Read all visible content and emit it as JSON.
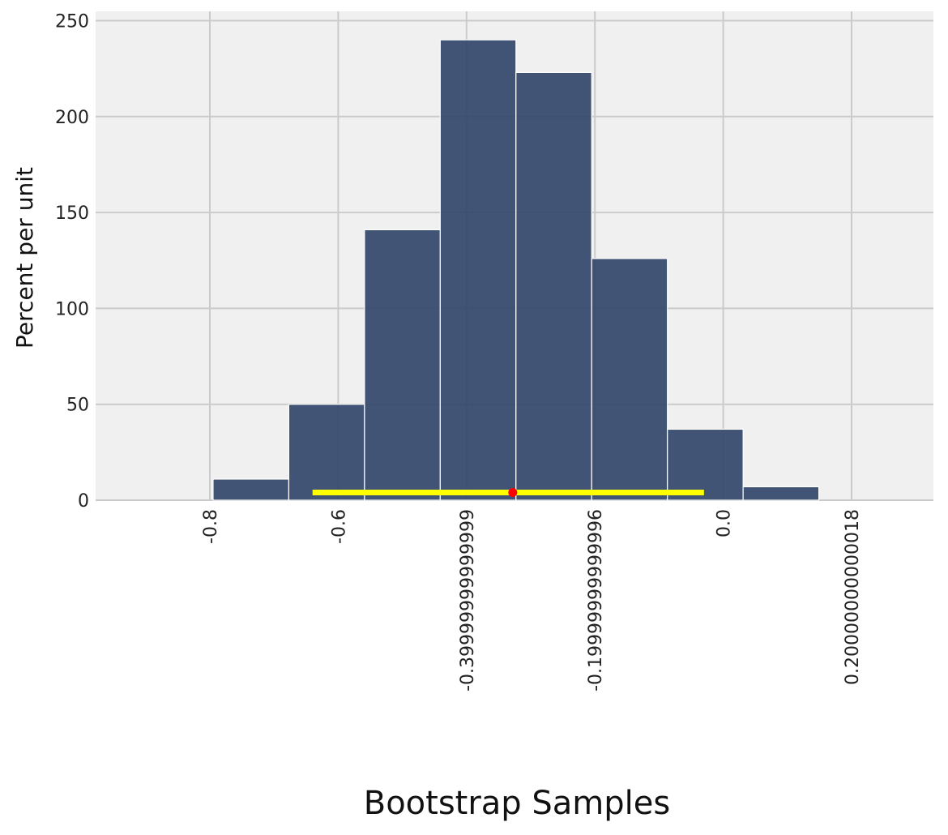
{
  "chart_data": {
    "type": "histogram",
    "xlabel": "Bootstrap Samples",
    "ylabel": "Percent per unit",
    "xlim": [
      -0.9,
      0.3
    ],
    "ylim": [
      0,
      250
    ],
    "grid": true,
    "y_ticks": [
      0,
      50,
      100,
      150,
      200,
      250
    ],
    "y_tick_labels": [
      "0",
      "50",
      "100",
      "150",
      "200",
      "250"
    ],
    "x_ticks": [
      -0.8,
      -0.6,
      -0.4,
      -0.2,
      0.0,
      0.2
    ],
    "x_tick_labels": [
      "-0.8",
      "-0.6",
      "-0.39999999999999",
      "-0.19999999999996",
      "0.0",
      "0.20000000000018"
    ],
    "bins": [
      {
        "start": -0.795,
        "end": -0.677,
        "value": 11
      },
      {
        "start": -0.677,
        "end": -0.559,
        "value": 50
      },
      {
        "start": -0.559,
        "end": -0.441,
        "value": 141
      },
      {
        "start": -0.441,
        "end": -0.323,
        "value": 240
      },
      {
        "start": -0.323,
        "end": -0.205,
        "value": 223
      },
      {
        "start": -0.205,
        "end": -0.087,
        "value": 126
      },
      {
        "start": -0.087,
        "end": 0.031,
        "value": 37
      },
      {
        "start": 0.031,
        "end": 0.149,
        "value": 7
      }
    ],
    "bar_color": "#33476b",
    "interval": {
      "low": -0.64,
      "high": -0.03,
      "y": 4,
      "color": "#ffff00"
    },
    "point": {
      "x": -0.328,
      "y": 4,
      "color": "#ff0000"
    }
  }
}
